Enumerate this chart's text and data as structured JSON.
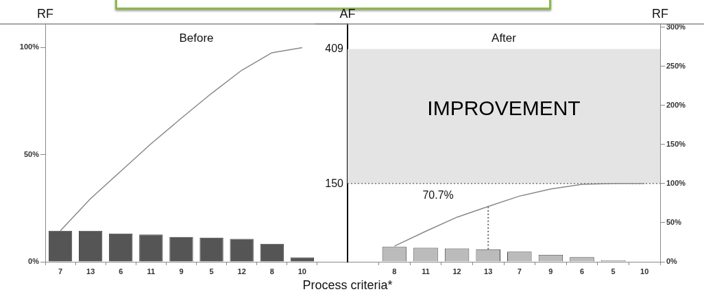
{
  "chart_data": [
    {
      "type": "bar",
      "title": "Before",
      "xlabel": "Process criteria*",
      "ylabel": "RF",
      "marker": "none",
      "categories": [
        "7",
        "13",
        "6",
        "11",
        "9",
        "5",
        "12",
        "8",
        "10"
      ],
      "series": [
        {
          "color": "#555555",
          "values": [
            14.5,
            14.5,
            13.2,
            12.7,
            11.6,
            11.3,
            10.7,
            8.4,
            2.1
          ]
        },
        {
          "type": "line",
          "color": "#888888",
          "values": [
            14.5,
            29.5,
            42.3,
            55.1,
            67,
            78.6,
            89.4,
            97.6,
            100
          ]
        }
      ],
      "ylim": [
        0,
        111
      ],
      "yticks": [
        {
          "value": 0,
          "label": "0%"
        },
        {
          "value": 50,
          "label": "50%"
        },
        {
          "value": 100,
          "label": "100%"
        }
      ]
    },
    {
      "type": "bar",
      "title": "After",
      "ylabel": "AF",
      "y2label": "RF",
      "marker": "none",
      "categories": [
        "8",
        "11",
        "12",
        "13",
        "7",
        "9",
        "6",
        "5",
        "10"
      ],
      "series": [
        {
          "axis": "y2",
          "color": "#bbbbbb",
          "values": [
            19,
            18,
            17,
            16,
            13,
            9,
            6,
            2,
            0
          ]
        },
        {
          "type": "line",
          "axis": "y2",
          "color": "#888888",
          "values": [
            20,
            39,
            57,
            70.7,
            84,
            93,
            99,
            100,
            100
          ]
        },
        {
          "type": "line",
          "axis": "y2",
          "color": "#666666",
          "line_style": "dotted",
          "x": [
            "13",
            "13"
          ],
          "values": [
            16,
            70.7
          ]
        }
      ],
      "ylim": [
        0,
        457
      ],
      "yticks": [
        150,
        409
      ],
      "y2lim": [
        0,
        304
      ],
      "y2ticks": [
        {
          "value": 0,
          "label": "0%"
        },
        {
          "value": 50,
          "label": "50%"
        },
        {
          "value": 100,
          "label": "100%"
        },
        {
          "value": 150,
          "label": "150%"
        },
        {
          "value": 200,
          "label": "200%"
        },
        {
          "value": 250,
          "label": "250%"
        },
        {
          "value": 300,
          "label": "300%"
        }
      ],
      "bands": [
        {
          "axis": "y",
          "from": 150,
          "to": 409,
          "label": "IMPROVEMENT",
          "color": "#e4e4e4"
        }
      ],
      "ref_lines": [
        {
          "axis": "y2",
          "value": 100,
          "color": "#777777",
          "line_style": "dotted"
        }
      ],
      "annotations": [
        "70.7%"
      ]
    }
  ]
}
